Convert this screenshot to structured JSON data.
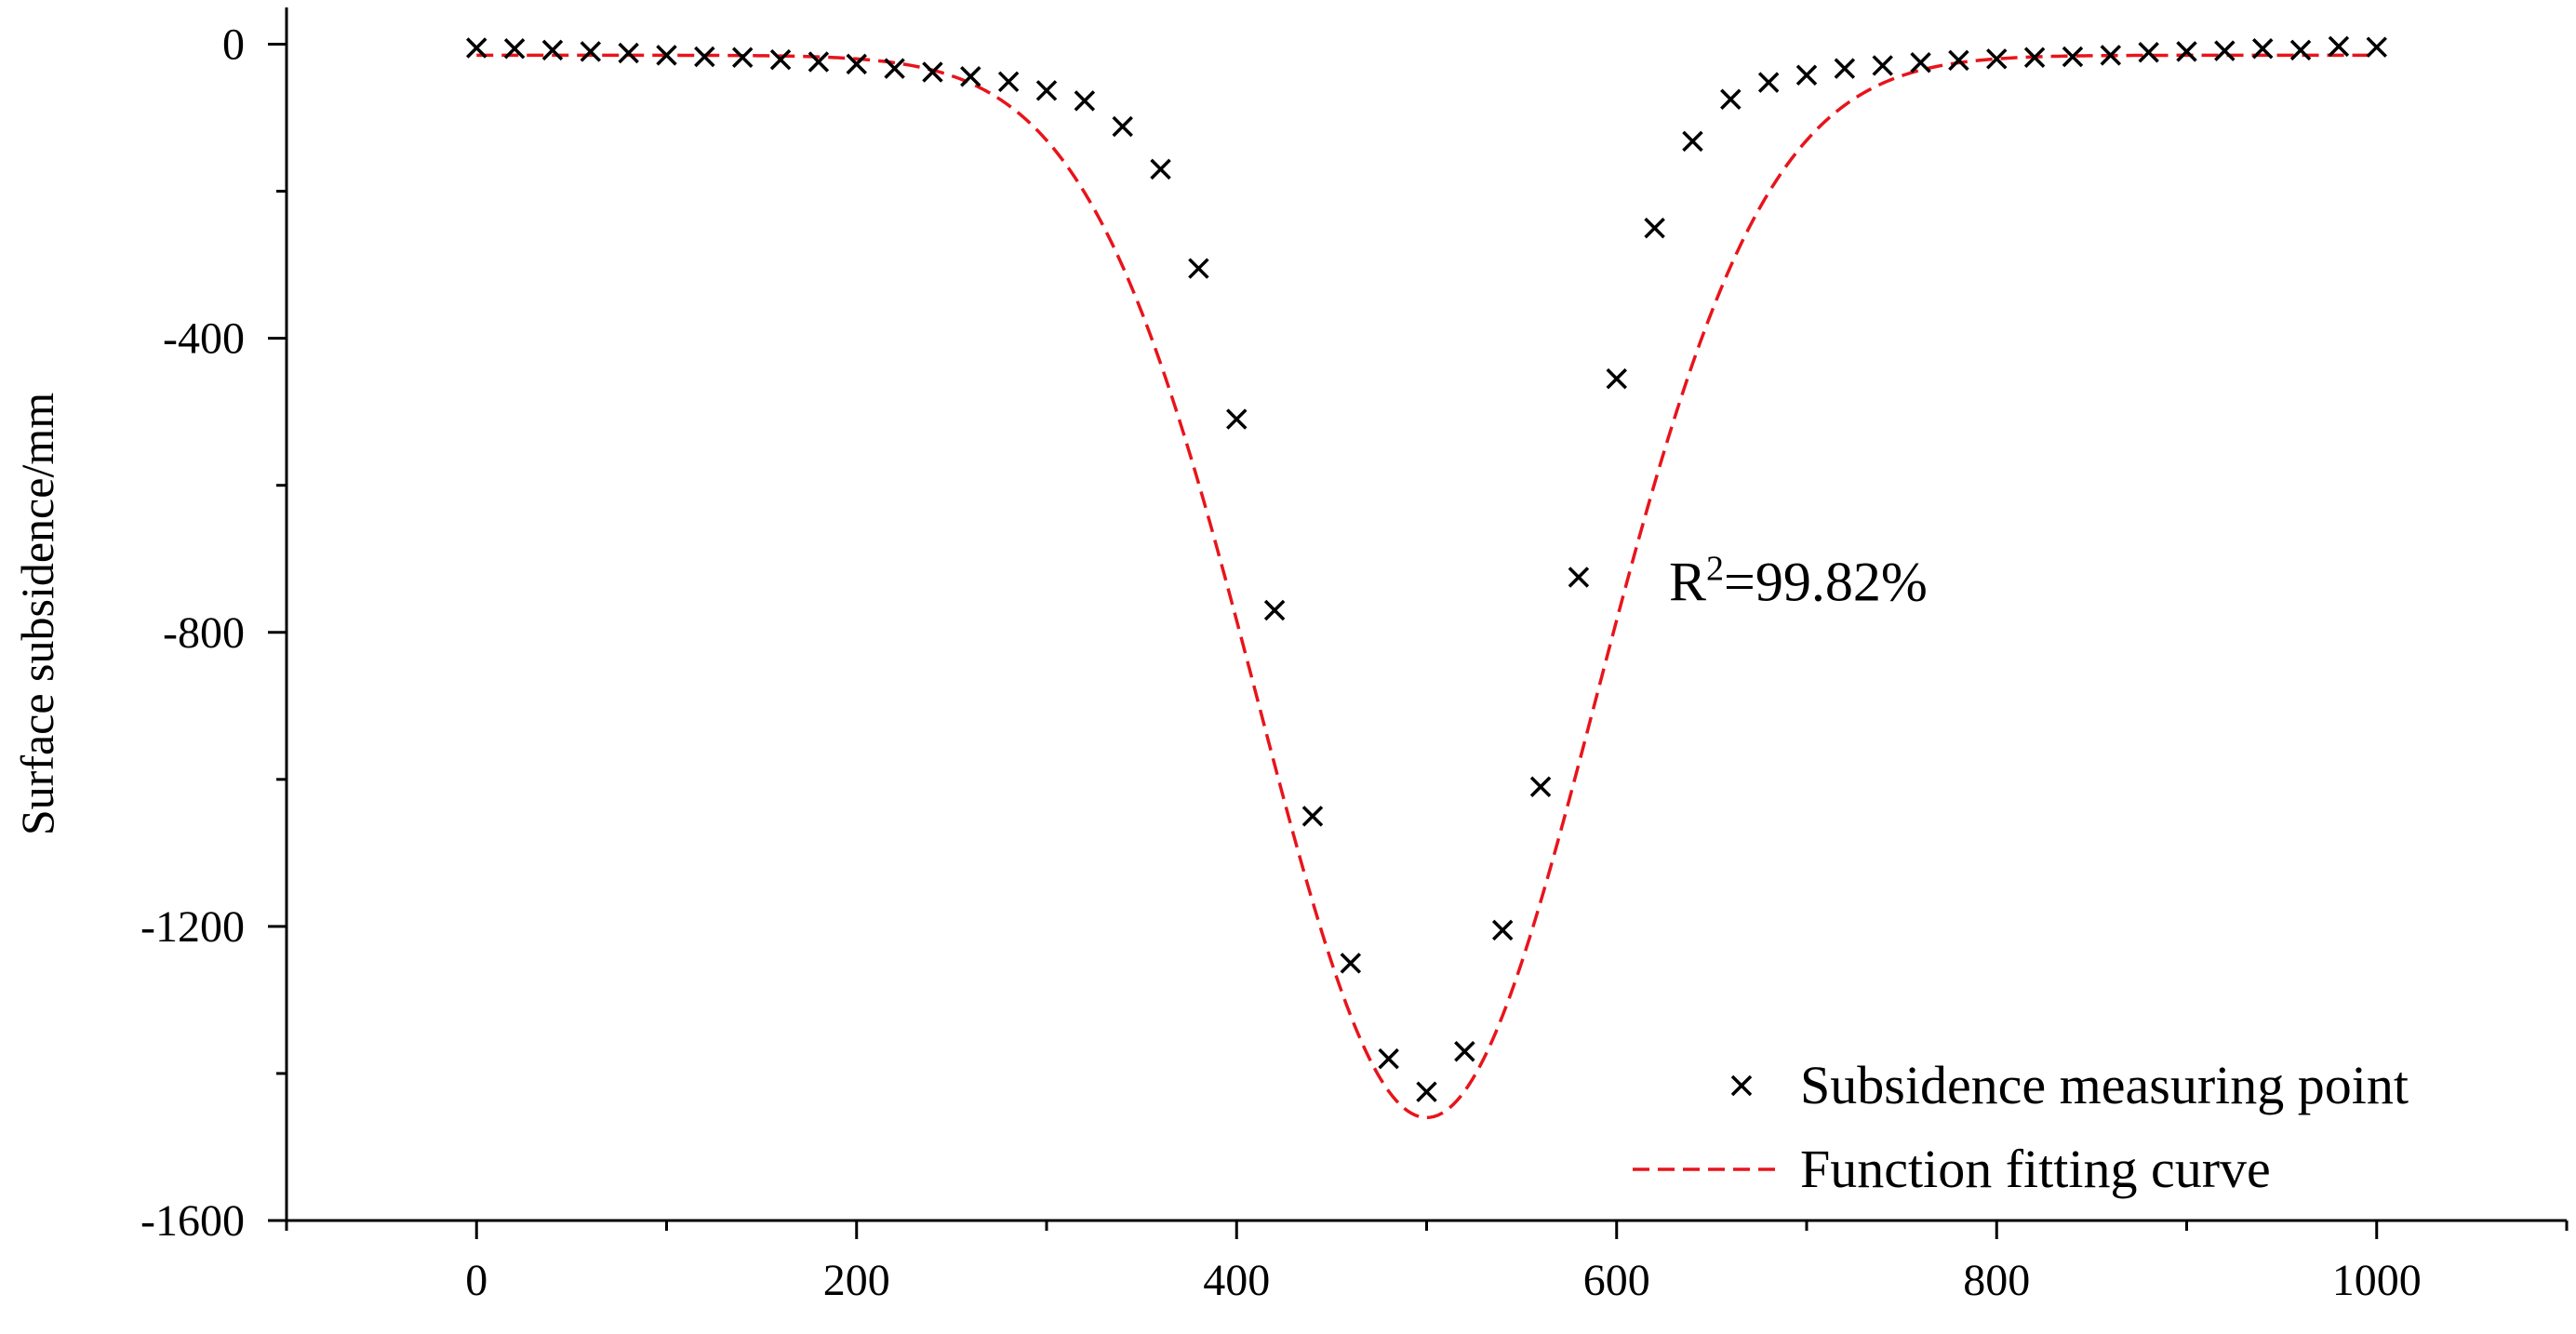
{
  "chart_data": {
    "type": "scatter",
    "title": "",
    "xlabel": "",
    "ylabel": "Surface subsidence/mm",
    "xlim": [
      -100,
      1100
    ],
    "ylim": [
      -1600,
      50
    ],
    "xticks": [
      0,
      200,
      400,
      600,
      800,
      1000
    ],
    "yticks": [
      0,
      -400,
      -800,
      -1200,
      -1600
    ],
    "grid": false,
    "legend_position": "bottom-right",
    "annotation": {
      "base": "R",
      "sup": "2",
      "rest": "=99.82%",
      "x": 630,
      "y": -730
    },
    "series": [
      {
        "name": "Subsidence measuring point",
        "kind": "scatter",
        "marker": "x",
        "color": "#000000",
        "x": [
          0,
          20,
          40,
          60,
          80,
          100,
          120,
          140,
          160,
          180,
          200,
          220,
          240,
          260,
          280,
          300,
          320,
          340,
          360,
          380,
          400,
          420,
          440,
          460,
          480,
          500,
          520,
          540,
          560,
          580,
          600,
          620,
          640,
          660,
          680,
          700,
          720,
          740,
          760,
          780,
          800,
          820,
          840,
          860,
          880,
          900,
          920,
          940,
          960,
          980,
          1000
        ],
        "y": [
          -5,
          -6,
          -8,
          -10,
          -12,
          -15,
          -17,
          -18,
          -21,
          -24,
          -27,
          -33,
          -38,
          -44,
          -51,
          -63,
          -77,
          -112,
          -170,
          -305,
          -510,
          -770,
          -1050,
          -1250,
          -1380,
          -1425,
          -1370,
          -1205,
          -1010,
          -725,
          -455,
          -250,
          -132,
          -75,
          -52,
          -42,
          -33,
          -29,
          -25,
          -22,
          -20,
          -18,
          -17,
          -15,
          -11,
          -10,
          -9,
          -6,
          -8,
          -3,
          -4
        ]
      },
      {
        "name": "Function fitting curve",
        "kind": "line",
        "style": "dashed",
        "color": "#e8141b",
        "center": 500,
        "amplitude": -1445,
        "width": 89,
        "offset": -15
      }
    ]
  }
}
